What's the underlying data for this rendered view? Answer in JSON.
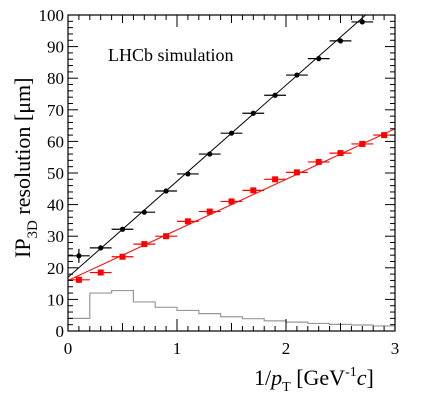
{
  "chart_data": {
    "type": "scatter",
    "title": "",
    "annotation": "LHCb simulation",
    "xlabel": {
      "prefix": "1/",
      "var": "p",
      "sub": "T",
      "unit_open": " [GeV",
      "unit_exp": "-1",
      "unit_var": "c",
      "unit_close": "]"
    },
    "ylabel": {
      "prefix": "IP",
      "sub": "3D",
      "rest": " resolution [μm]"
    },
    "xlim": [
      0,
      3
    ],
    "ylim": [
      0,
      100
    ],
    "x_ticks": [
      0,
      1,
      2,
      3
    ],
    "y_ticks": [
      0,
      10,
      20,
      30,
      40,
      50,
      60,
      70,
      80,
      90,
      100
    ],
    "grid": false,
    "legend": "none",
    "series": [
      {
        "color": "#000000",
        "marker": "circle",
        "x_halfwidth": 0.1,
        "x": [
          0.1,
          0.3,
          0.5,
          0.7,
          0.9,
          1.1,
          1.3,
          1.5,
          1.7,
          1.9,
          2.1,
          2.3,
          2.5,
          2.7
        ],
        "y": [
          23.8,
          26.3,
          32.2,
          37.6,
          44.3,
          49.7,
          56.0,
          62.6,
          68.9,
          74.6,
          81.0,
          86.2,
          91.8,
          97.8
        ],
        "yerr": [
          2.2,
          0.8,
          0.6,
          0.6,
          0.6,
          0.6,
          0.6,
          0.6,
          0.6,
          0.6,
          0.6,
          0.6,
          0.6,
          0.6
        ],
        "fit": {
          "slope": 30.4,
          "intercept": 17.0
        }
      },
      {
        "color": "#ff0000",
        "marker": "square",
        "x_halfwidth": 0.1,
        "x": [
          0.1,
          0.3,
          0.5,
          0.7,
          0.9,
          1.1,
          1.3,
          1.5,
          1.7,
          1.9,
          2.1,
          2.3,
          2.5,
          2.7,
          2.9
        ],
        "y": [
          16.2,
          18.5,
          23.5,
          27.5,
          30.0,
          34.7,
          37.8,
          41.0,
          44.5,
          48.0,
          50.2,
          53.5,
          56.3,
          59.2,
          62.0
        ],
        "yerr": [
          1.0,
          0.6,
          0.5,
          0.5,
          0.5,
          0.5,
          0.5,
          0.5,
          0.5,
          0.5,
          0.5,
          0.5,
          0.5,
          0.5,
          0.5
        ],
        "fit": {
          "slope": 16.0,
          "intercept": 16.0
        }
      }
    ],
    "histogram": {
      "color": "#999999",
      "bin_edges": [
        0,
        0.2,
        0.4,
        0.6,
        0.8,
        1.0,
        1.2,
        1.4,
        1.6,
        1.8,
        2.0,
        2.2,
        2.4,
        2.6,
        2.8,
        3.0
      ],
      "values": [
        4.0,
        12.0,
        12.8,
        9.2,
        7.5,
        6.5,
        5.5,
        4.5,
        3.9,
        3.2,
        2.8,
        2.4,
        2.1,
        1.9,
        1.6
      ]
    }
  }
}
